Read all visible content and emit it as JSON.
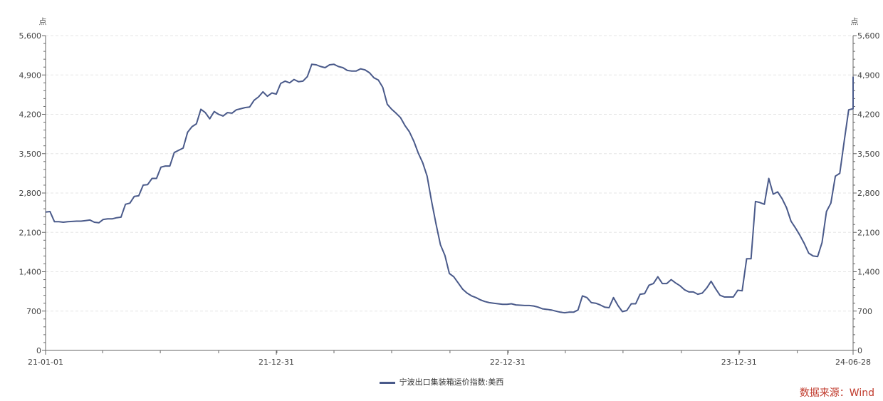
{
  "chart_data": {
    "type": "line",
    "series": [
      {
        "name": "宁波出口集装箱运价指数:美西",
        "color": "#4a5a8a",
        "points": [
          [
            "2021-01-01",
            2460
          ],
          [
            "2021-01-08",
            2470
          ],
          [
            "2021-01-15",
            2290
          ],
          [
            "2021-01-22",
            2290
          ],
          [
            "2021-01-29",
            2280
          ],
          [
            "2021-02-05",
            2290
          ],
          [
            "2021-02-19",
            2300
          ],
          [
            "2021-02-26",
            2300
          ],
          [
            "2021-03-05",
            2310
          ],
          [
            "2021-03-12",
            2320
          ],
          [
            "2021-03-19",
            2280
          ],
          [
            "2021-03-26",
            2270
          ],
          [
            "2021-04-02",
            2330
          ],
          [
            "2021-04-09",
            2340
          ],
          [
            "2021-04-16",
            2340
          ],
          [
            "2021-04-23",
            2360
          ],
          [
            "2021-04-30",
            2370
          ],
          [
            "2021-05-07",
            2600
          ],
          [
            "2021-05-14",
            2620
          ],
          [
            "2021-05-21",
            2740
          ],
          [
            "2021-05-28",
            2750
          ],
          [
            "2021-06-04",
            2940
          ],
          [
            "2021-06-11",
            2950
          ],
          [
            "2021-06-18",
            3060
          ],
          [
            "2021-06-25",
            3060
          ],
          [
            "2021-07-02",
            3260
          ],
          [
            "2021-07-09",
            3280
          ],
          [
            "2021-07-16",
            3280
          ],
          [
            "2021-07-23",
            3520
          ],
          [
            "2021-07-30",
            3560
          ],
          [
            "2021-08-06",
            3600
          ],
          [
            "2021-08-13",
            3880
          ],
          [
            "2021-08-20",
            3980
          ],
          [
            "2021-08-27",
            4030
          ],
          [
            "2021-09-03",
            4290
          ],
          [
            "2021-09-10",
            4230
          ],
          [
            "2021-09-17",
            4120
          ],
          [
            "2021-09-24",
            4250
          ],
          [
            "2021-10-01",
            4200
          ],
          [
            "2021-10-08",
            4170
          ],
          [
            "2021-10-15",
            4230
          ],
          [
            "2021-10-22",
            4220
          ],
          [
            "2021-10-29",
            4280
          ],
          [
            "2021-11-05",
            4300
          ],
          [
            "2021-11-12",
            4320
          ],
          [
            "2021-11-19",
            4330
          ],
          [
            "2021-11-26",
            4450
          ],
          [
            "2021-12-03",
            4510
          ],
          [
            "2021-12-10",
            4600
          ],
          [
            "2021-12-17",
            4520
          ],
          [
            "2021-12-24",
            4580
          ],
          [
            "2021-12-31",
            4560
          ],
          [
            "2022-01-07",
            4750
          ],
          [
            "2022-01-14",
            4790
          ],
          [
            "2022-01-21",
            4760
          ],
          [
            "2022-01-28",
            4820
          ],
          [
            "2022-02-04",
            4780
          ],
          [
            "2022-02-11",
            4790
          ],
          [
            "2022-02-18",
            4870
          ],
          [
            "2022-02-25",
            5090
          ],
          [
            "2022-03-04",
            5080
          ],
          [
            "2022-03-11",
            5050
          ],
          [
            "2022-03-18",
            5030
          ],
          [
            "2022-03-25",
            5080
          ],
          [
            "2022-04-01",
            5090
          ],
          [
            "2022-04-08",
            5050
          ],
          [
            "2022-04-15",
            5030
          ],
          [
            "2022-04-22",
            4980
          ],
          [
            "2022-04-29",
            4970
          ],
          [
            "2022-05-06",
            4970
          ],
          [
            "2022-05-13",
            5010
          ],
          [
            "2022-05-20",
            4990
          ],
          [
            "2022-05-27",
            4940
          ],
          [
            "2022-06-03",
            4850
          ],
          [
            "2022-06-10",
            4810
          ],
          [
            "2022-06-17",
            4680
          ],
          [
            "2022-06-24",
            4380
          ],
          [
            "2022-07-01",
            4290
          ],
          [
            "2022-07-08",
            4220
          ],
          [
            "2022-07-15",
            4140
          ],
          [
            "2022-07-22",
            4000
          ],
          [
            "2022-07-29",
            3890
          ],
          [
            "2022-08-05",
            3720
          ],
          [
            "2022-08-12",
            3510
          ],
          [
            "2022-08-19",
            3340
          ],
          [
            "2022-08-26",
            3100
          ],
          [
            "2022-09-02",
            2650
          ],
          [
            "2022-09-09",
            2250
          ],
          [
            "2022-09-16",
            1880
          ],
          [
            "2022-09-23",
            1690
          ],
          [
            "2022-09-30",
            1370
          ],
          [
            "2022-10-07",
            1310
          ],
          [
            "2022-10-14",
            1200
          ],
          [
            "2022-10-21",
            1090
          ],
          [
            "2022-10-28",
            1020
          ],
          [
            "2022-11-04",
            970
          ],
          [
            "2022-11-11",
            940
          ],
          [
            "2022-11-18",
            900
          ],
          [
            "2022-11-25",
            870
          ],
          [
            "2022-12-02",
            850
          ],
          [
            "2022-12-09",
            840
          ],
          [
            "2022-12-16",
            830
          ],
          [
            "2022-12-23",
            820
          ],
          [
            "2022-12-30",
            820
          ],
          [
            "2023-01-06",
            830
          ],
          [
            "2023-01-13",
            810
          ],
          [
            "2023-01-27",
            800
          ],
          [
            "2023-02-03",
            800
          ],
          [
            "2023-02-10",
            790
          ],
          [
            "2023-02-17",
            770
          ],
          [
            "2023-02-24",
            740
          ],
          [
            "2023-03-03",
            730
          ],
          [
            "2023-03-10",
            720
          ],
          [
            "2023-03-17",
            700
          ],
          [
            "2023-03-24",
            680
          ],
          [
            "2023-03-31",
            670
          ],
          [
            "2023-04-07",
            680
          ],
          [
            "2023-04-14",
            680
          ],
          [
            "2023-04-21",
            720
          ],
          [
            "2023-04-28",
            970
          ],
          [
            "2023-05-05",
            940
          ],
          [
            "2023-05-12",
            850
          ],
          [
            "2023-05-19",
            840
          ],
          [
            "2023-05-26",
            810
          ],
          [
            "2023-06-02",
            770
          ],
          [
            "2023-06-09",
            760
          ],
          [
            "2023-06-16",
            940
          ],
          [
            "2023-06-23",
            800
          ],
          [
            "2023-06-30",
            690
          ],
          [
            "2023-07-07",
            710
          ],
          [
            "2023-07-14",
            830
          ],
          [
            "2023-07-21",
            830
          ],
          [
            "2023-07-28",
            1000
          ],
          [
            "2023-08-04",
            1010
          ],
          [
            "2023-08-11",
            1160
          ],
          [
            "2023-08-18",
            1190
          ],
          [
            "2023-08-25",
            1310
          ],
          [
            "2023-09-01",
            1190
          ],
          [
            "2023-09-08",
            1190
          ],
          [
            "2023-09-15",
            1260
          ],
          [
            "2023-09-22",
            1200
          ],
          [
            "2023-09-29",
            1150
          ],
          [
            "2023-10-06",
            1080
          ],
          [
            "2023-10-13",
            1040
          ],
          [
            "2023-10-20",
            1040
          ],
          [
            "2023-10-27",
            1000
          ],
          [
            "2023-11-03",
            1020
          ],
          [
            "2023-11-10",
            1110
          ],
          [
            "2023-11-17",
            1230
          ],
          [
            "2023-11-24",
            1100
          ],
          [
            "2023-12-01",
            980
          ],
          [
            "2023-12-08",
            950
          ],
          [
            "2023-12-15",
            950
          ],
          [
            "2023-12-22",
            950
          ],
          [
            "2023-12-29",
            1070
          ],
          [
            "2024-01-05",
            1060
          ],
          [
            "2024-01-12",
            1630
          ],
          [
            "2024-01-19",
            1630
          ],
          [
            "2024-01-26",
            2650
          ],
          [
            "2024-02-02",
            2630
          ],
          [
            "2024-02-09",
            2600
          ],
          [
            "2024-02-16",
            3060
          ],
          [
            "2024-02-23",
            2780
          ],
          [
            "2024-03-01",
            2820
          ],
          [
            "2024-03-08",
            2700
          ],
          [
            "2024-03-15",
            2540
          ],
          [
            "2024-03-22",
            2300
          ],
          [
            "2024-03-29",
            2180
          ],
          [
            "2024-04-05",
            2050
          ],
          [
            "2024-04-12",
            1900
          ],
          [
            "2024-04-19",
            1730
          ],
          [
            "2024-04-26",
            1680
          ],
          [
            "2024-05-03",
            1670
          ],
          [
            "2024-05-10",
            1920
          ],
          [
            "2024-05-17",
            2470
          ],
          [
            "2024-05-24",
            2620
          ],
          [
            "2024-05-31",
            3100
          ],
          [
            "2024-06-07",
            3150
          ],
          [
            "2024-06-14",
            3720
          ],
          [
            "2024-06-21",
            4280
          ],
          [
            "2024-06-28",
            4300
          ],
          [
            "2024-06-28",
            4870
          ]
        ]
      }
    ],
    "x_range": [
      "2021-01-01",
      "2024-06-28"
    ],
    "x_tick_labels": [
      "21-01-01",
      "21-12-31",
      "22-12-31",
      "23-12-31",
      "24-06-28"
    ],
    "x_tick_dates": [
      "2021-01-01",
      "2021-12-31",
      "2022-12-31",
      "2023-12-31",
      "2024-06-28"
    ],
    "ylim": [
      0,
      5600
    ],
    "y_ticks": [
      0,
      700,
      1400,
      2100,
      2800,
      3500,
      4200,
      4900,
      5600
    ],
    "y_tick_labels": [
      "0",
      "700",
      "1,400",
      "2,100",
      "2,800",
      "3,500",
      "4,200",
      "4,900",
      "5,600"
    ],
    "y_unit_left": "点",
    "y_unit_right": "点",
    "grid": "horizontal-dashed",
    "legend_position": "bottom-center"
  },
  "source": {
    "text": "数据来源：Wind",
    "color": "#c0392b"
  },
  "colors": {
    "axis": "#666666",
    "grid": "#e6e6e6"
  }
}
